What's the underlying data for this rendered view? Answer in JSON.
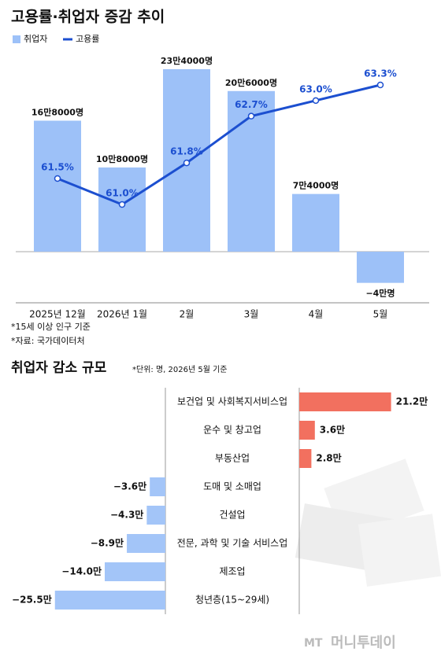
{
  "chart_data": [
    {
      "type": "bar-line",
      "title": "고용률·취업자 증감 추이",
      "categories": [
        "2025년 12월",
        "2026년 1월",
        "2월",
        "3월",
        "4월",
        "5월"
      ],
      "series": [
        {
          "name": "취업자",
          "color": "#9dc1f8",
          "type": "bar",
          "values": [
            168000,
            108000,
            234000,
            206000,
            74000,
            -40000
          ],
          "value_labels": [
            "16만8000명",
            "10만8000명",
            "23만4000명",
            "20만6000명",
            "7만4000명",
            "−4만명"
          ]
        },
        {
          "name": "고용률",
          "color": "#1c4fd0",
          "type": "line",
          "values": [
            61.5,
            61.0,
            61.8,
            62.7,
            63.0,
            63.3
          ],
          "value_labels": [
            "61.5%",
            "61.0%",
            "61.8%",
            "62.7%",
            "63.0%",
            "63.3%"
          ]
        }
      ],
      "notes": [
        "*15세 이상 인구 기준",
        "*자료: 국가데이터처"
      ]
    },
    {
      "type": "diverging-bar",
      "title": "취업자 감소 규모",
      "subtitle": "*단위: 명, 2026년 5월 기준",
      "categories": [
        "보건업 및 사회복지서비스업",
        "운수 및 창고업",
        "부동산업",
        "도매 및 소매업",
        "건설업",
        "전문, 과학 및 기술 서비스업",
        "제조업",
        "청년층(15~29세)"
      ],
      "values": [
        21.2,
        3.6,
        2.8,
        -3.6,
        -4.3,
        -8.9,
        -14.0,
        -25.5
      ],
      "value_labels": [
        "21.2만",
        "3.6만",
        "2.8만",
        "−3.6만",
        "−4.3만",
        "−8.9만",
        "−14.0만",
        "−25.5만"
      ],
      "positive_color": "#f2705f",
      "negative_color": "#a3c5f8"
    }
  ],
  "watermark": [
    "MT",
    "머니투데이"
  ]
}
